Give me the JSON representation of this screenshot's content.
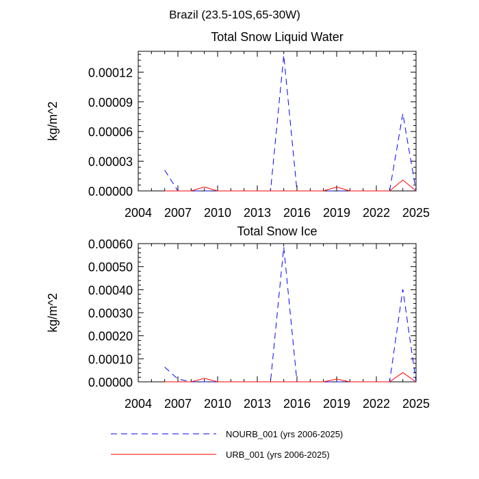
{
  "suptitle": "Brazil (23.5-10S,65-30W)",
  "series_styles": {
    "NOURB_001": {
      "color": "#0000ff",
      "dash": "dashed"
    },
    "URB_001": {
      "color": "#ff0000",
      "dash": "solid"
    }
  },
  "chart_data": [
    {
      "type": "line",
      "title": "Total Snow Liquid Water",
      "xlabel": "",
      "ylabel": "kg/m^2",
      "xlim": [
        2004,
        2025
      ],
      "ylim": [
        0,
        0.000141
      ],
      "xticks": [
        2004,
        2007,
        2010,
        2013,
        2016,
        2019,
        2022,
        2025
      ],
      "xtick_labels": [
        "2004",
        "2007",
        "2010",
        "2013",
        "2016",
        "2019",
        "2022",
        "2025"
      ],
      "yticks": [
        0,
        3e-05,
        6e-05,
        9e-05,
        0.00012
      ],
      "ytick_labels": [
        "0.00000",
        "0.00003",
        "0.00006",
        "0.00009",
        "0.00012"
      ],
      "x": [
        2006,
        2007,
        2008,
        2009,
        2010,
        2011,
        2012,
        2013,
        2014,
        2015,
        2016,
        2017,
        2018,
        2019,
        2020,
        2021,
        2022,
        2023,
        2024,
        2025
      ],
      "series": [
        {
          "name": "NOURB_001",
          "values": [
            2.1e-05,
            0,
            0,
            0,
            0,
            0,
            0,
            0,
            0,
            0.000137,
            0,
            0,
            0,
            0,
            0,
            0,
            0,
            0,
            7.8e-05,
            0
          ]
        },
        {
          "name": "URB_001",
          "values": [
            0,
            0,
            0,
            4e-06,
            0,
            0,
            0,
            0,
            0,
            0,
            0,
            0,
            0,
            4e-06,
            0,
            0,
            0,
            0,
            1.1e-05,
            0
          ]
        }
      ]
    },
    {
      "type": "line",
      "title": "Total Snow Ice",
      "xlabel": "",
      "ylabel": "kg/m^2",
      "xlim": [
        2004,
        2025
      ],
      "ylim": [
        0,
        0.0006
      ],
      "xticks": [
        2004,
        2007,
        2010,
        2013,
        2016,
        2019,
        2022,
        2025
      ],
      "xtick_labels": [
        "2004",
        "2007",
        "2010",
        "2013",
        "2016",
        "2019",
        "2022",
        "2025"
      ],
      "yticks": [
        0,
        0.0001,
        0.0002,
        0.0003,
        0.0004,
        0.0005,
        0.0006
      ],
      "ytick_labels": [
        "0.00000",
        "0.00010",
        "0.00020",
        "0.00030",
        "0.00040",
        "0.00050",
        "0.00060"
      ],
      "x": [
        2006,
        2007,
        2008,
        2009,
        2010,
        2011,
        2012,
        2013,
        2014,
        2015,
        2016,
        2017,
        2018,
        2019,
        2020,
        2021,
        2022,
        2023,
        2024,
        2025
      ],
      "series": [
        {
          "name": "NOURB_001",
          "values": [
            6.4e-05,
            1.2e-05,
            0,
            0,
            0,
            0,
            0,
            0,
            0,
            0.000585,
            0,
            0,
            0,
            0,
            0,
            0,
            0,
            0,
            0.000402,
            0
          ]
        },
        {
          "name": "URB_001",
          "values": [
            0,
            0,
            0,
            1.5e-05,
            0,
            0,
            0,
            0,
            0,
            0,
            0,
            0,
            0,
            1.2e-05,
            0,
            0,
            0,
            0,
            4e-05,
            0
          ]
        }
      ]
    }
  ],
  "legend": [
    {
      "series": "NOURB_001",
      "label": "NOURB_001 (yrs 2006-2025)"
    },
    {
      "series": "URB_001",
      "label": "URB_001 (yrs 2006-2025)"
    }
  ]
}
